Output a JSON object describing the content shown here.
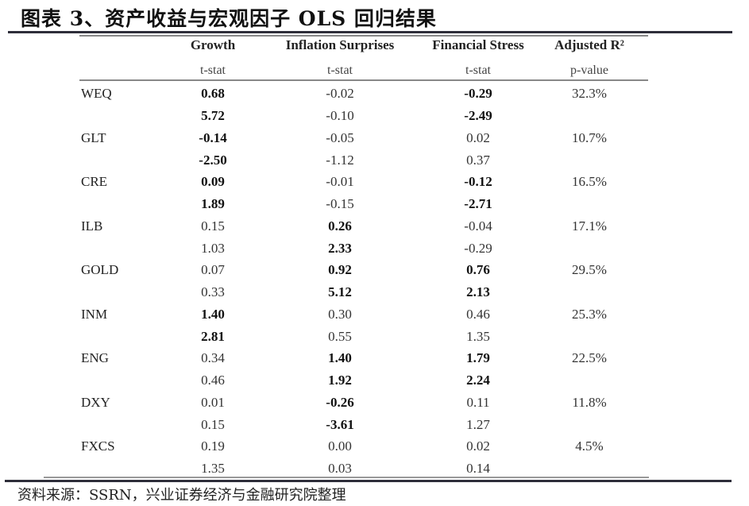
{
  "title": "图表 3、资产收益与宏观因子 OLS 回归结果",
  "table": {
    "columns": [
      {
        "header": "",
        "sub": ""
      },
      {
        "header": "Growth",
        "sub": "t-stat"
      },
      {
        "header": "Inflation Surprises",
        "sub": "t-stat"
      },
      {
        "header": "Financial Stress",
        "sub": "t-stat"
      },
      {
        "header": "Adjusted R²",
        "sub": "p-value"
      }
    ],
    "rows": [
      {
        "asset": "WEQ",
        "growth": "0.68",
        "growth_b": true,
        "infl": "-0.02",
        "infl_b": false,
        "fs": "-0.29",
        "fs_b": true,
        "r2": "32.3%",
        "growth_t": "5.72",
        "growth_t_b": true,
        "infl_t": "-0.10",
        "infl_t_b": false,
        "fs_t": "-2.49",
        "fs_t_b": true
      },
      {
        "asset": "GLT",
        "growth": "-0.14",
        "growth_b": true,
        "infl": "-0.05",
        "infl_b": false,
        "fs": "0.02",
        "fs_b": false,
        "r2": "10.7%",
        "growth_t": "-2.50",
        "growth_t_b": true,
        "infl_t": "-1.12",
        "infl_t_b": false,
        "fs_t": "0.37",
        "fs_t_b": false
      },
      {
        "asset": "CRE",
        "growth": "0.09",
        "growth_b": true,
        "infl": "-0.01",
        "infl_b": false,
        "fs": "-0.12",
        "fs_b": true,
        "r2": "16.5%",
        "growth_t": "1.89",
        "growth_t_b": true,
        "infl_t": "-0.15",
        "infl_t_b": false,
        "fs_t": "-2.71",
        "fs_t_b": true
      },
      {
        "asset": "ILB",
        "growth": "0.15",
        "growth_b": false,
        "infl": "0.26",
        "infl_b": true,
        "fs": "-0.04",
        "fs_b": false,
        "r2": "17.1%",
        "growth_t": "1.03",
        "growth_t_b": false,
        "infl_t": "2.33",
        "infl_t_b": true,
        "fs_t": "-0.29",
        "fs_t_b": false
      },
      {
        "asset": "GOLD",
        "growth": "0.07",
        "growth_b": false,
        "infl": "0.92",
        "infl_b": true,
        "fs": "0.76",
        "fs_b": true,
        "r2": "29.5%",
        "growth_t": "0.33",
        "growth_t_b": false,
        "infl_t": "5.12",
        "infl_t_b": true,
        "fs_t": "2.13",
        "fs_t_b": true
      },
      {
        "asset": "INM",
        "growth": "1.40",
        "growth_b": true,
        "infl": "0.30",
        "infl_b": false,
        "fs": "0.46",
        "fs_b": false,
        "r2": "25.3%",
        "growth_t": "2.81",
        "growth_t_b": true,
        "infl_t": "0.55",
        "infl_t_b": false,
        "fs_t": "1.35",
        "fs_t_b": false
      },
      {
        "asset": "ENG",
        "growth": "0.34",
        "growth_b": false,
        "infl": "1.40",
        "infl_b": true,
        "fs": "1.79",
        "fs_b": true,
        "r2": "22.5%",
        "growth_t": "0.46",
        "growth_t_b": false,
        "infl_t": "1.92",
        "infl_t_b": true,
        "fs_t": "2.24",
        "fs_t_b": true
      },
      {
        "asset": "DXY",
        "growth": "0.01",
        "growth_b": false,
        "infl": "-0.26",
        "infl_b": true,
        "fs": "0.11",
        "fs_b": false,
        "r2": "11.8%",
        "growth_t": "0.15",
        "growth_t_b": false,
        "infl_t": "-3.61",
        "infl_t_b": true,
        "fs_t": "1.27",
        "fs_t_b": false
      },
      {
        "asset": "FXCS",
        "growth": "0.19",
        "growth_b": false,
        "infl": "0.00",
        "infl_b": false,
        "fs": "0.02",
        "fs_b": false,
        "r2": "4.5%",
        "growth_t": "1.35",
        "growth_t_b": false,
        "infl_t": "0.03",
        "infl_t_b": false,
        "fs_t": "0.14",
        "fs_t_b": false
      }
    ]
  },
  "footer": "资料来源：SSRN，兴业证券经济与金融研究院整理"
}
